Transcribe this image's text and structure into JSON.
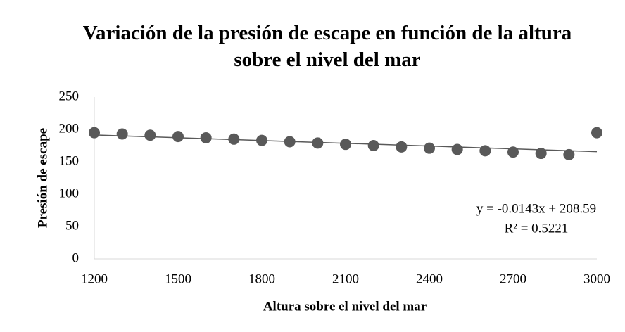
{
  "chart_data": {
    "type": "scatter",
    "title": "Variación de la presión de escape en función de la altura sobre el nivel del mar",
    "xlabel": "Altura sobre el nivel del mar",
    "ylabel": "Presión de escape",
    "x": [
      1200,
      1300,
      1400,
      1500,
      1600,
      1700,
      1800,
      1900,
      2000,
      2100,
      2200,
      2300,
      2400,
      2500,
      2600,
      2700,
      2800,
      2900,
      3000
    ],
    "values": [
      195,
      193,
      191,
      189,
      187,
      185,
      183,
      181,
      179,
      177,
      175,
      173,
      171,
      169,
      167,
      165,
      163,
      161,
      195
    ],
    "color": "#595959",
    "xlim": [
      1200,
      3000
    ],
    "xticks": [
      1200,
      1500,
      1800,
      2100,
      2400,
      2700,
      3000
    ],
    "ylim": [
      0,
      250
    ],
    "yticks": [
      0,
      50,
      100,
      150,
      200,
      250
    ],
    "grid": false,
    "trendline": {
      "slope": -0.0143,
      "intercept": 208.59,
      "color": "#595959",
      "equation": "y = -0.0143x + 208.59",
      "r2": "R² = 0.5221"
    }
  }
}
